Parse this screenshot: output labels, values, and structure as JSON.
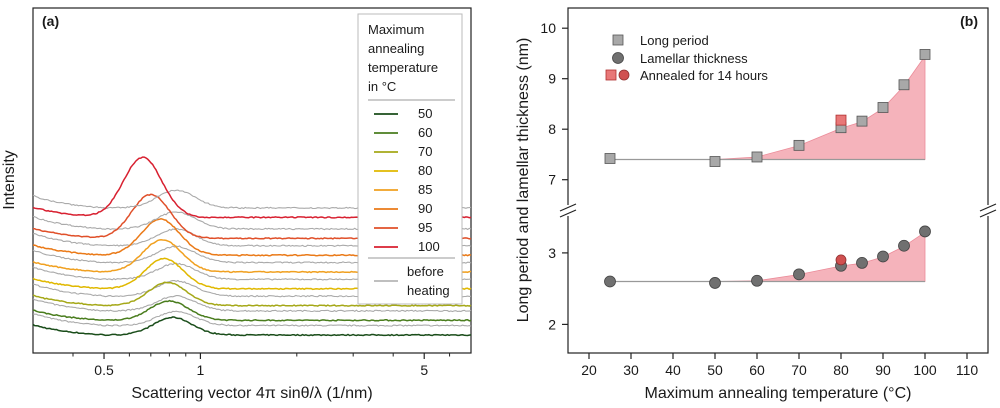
{
  "chart_data": [
    {
      "panel": "(a)",
      "type": "line",
      "xlabel": "Scattering vector 4π sinθ/λ (1/nm)",
      "ylabel": "Intensity",
      "x_scale": "log",
      "x_ticks": [
        {
          "value": 0.5,
          "label": "0.5"
        },
        {
          "value": 1,
          "label": "1"
        },
        {
          "value": 5,
          "label": "5"
        }
      ],
      "xlim": [
        0.3,
        7
      ],
      "y_ticks": "none",
      "legend": {
        "title": "Maximum annealing temperature in °C",
        "title_lines": [
          "Maximum",
          "annealing",
          "temperature",
          "in °C"
        ],
        "entries": [
          "50",
          "60",
          "70",
          "80",
          "85",
          "90",
          "95",
          "100"
        ],
        "reference_lines": [
          "before",
          "heating"
        ],
        "placement": "top-right"
      },
      "series": [
        {
          "name": "50",
          "color": "#1a4d1a",
          "peak_q": 0.82,
          "offset": 0.0,
          "peak_height": 0.38,
          "ref_peak_height": 0.3
        },
        {
          "name": "60",
          "color": "#4a7d1e",
          "peak_q": 0.8,
          "offset": 0.07,
          "peak_height": 0.42,
          "ref_peak_height": 0.32
        },
        {
          "name": "70",
          "color": "#a5a818",
          "peak_q": 0.79,
          "offset": 0.14,
          "peak_height": 0.5,
          "ref_peak_height": 0.33
        },
        {
          "name": "80",
          "color": "#e0b800",
          "peak_q": 0.77,
          "offset": 0.22,
          "peak_height": 0.65,
          "ref_peak_height": 0.34
        },
        {
          "name": "85",
          "color": "#f0a020",
          "peak_q": 0.76,
          "offset": 0.3,
          "peak_height": 0.7,
          "ref_peak_height": 0.35
        },
        {
          "name": "90",
          "color": "#ea7a18",
          "peak_q": 0.75,
          "offset": 0.38,
          "peak_height": 0.78,
          "ref_peak_height": 0.36
        },
        {
          "name": "95",
          "color": "#e0502a",
          "peak_q": 0.7,
          "offset": 0.46,
          "peak_height": 0.95,
          "ref_peak_height": 0.37
        },
        {
          "name": "100",
          "color": "#d82030",
          "peak_q": 0.66,
          "offset": 0.56,
          "peak_height": 1.3,
          "ref_peak_height": 0.38
        }
      ],
      "reference_color": "#aaaaaa"
    },
    {
      "panel": "(b)",
      "type": "scatter",
      "xlabel": "Maximum annealing temperature (°C)",
      "ylabel": "Long period and lamellar thickness (nm)",
      "xlim": [
        15,
        115
      ],
      "x_ticks": [
        20,
        30,
        40,
        50,
        60,
        70,
        80,
        90,
        100,
        110
      ],
      "y_axis_break": true,
      "ylim_upper": [
        6.4,
        10.4
      ],
      "ylim_lower": [
        1.6,
        3.6
      ],
      "y_ticks_upper": [
        7,
        8,
        9,
        10
      ],
      "y_ticks_lower": [
        2,
        3
      ],
      "legend": {
        "entries": [
          "Long period",
          "Lamellar thickness",
          "Annealed for 14 hours"
        ],
        "placement": "top-left"
      },
      "series": [
        {
          "name": "Long period",
          "marker": "square",
          "color": "#a8a8a8",
          "x": [
            25,
            50,
            60,
            70,
            80,
            85,
            90,
            95,
            100
          ],
          "y": [
            7.42,
            7.36,
            7.45,
            7.68,
            8.03,
            8.16,
            8.43,
            8.88,
            9.48
          ]
        },
        {
          "name": "Lamellar thickness",
          "marker": "circle",
          "color": "#707070",
          "x": [
            25,
            50,
            60,
            70,
            80,
            85,
            90,
            95,
            100
          ],
          "y": [
            2.6,
            2.58,
            2.61,
            2.7,
            2.82,
            2.86,
            2.95,
            3.1,
            3.3
          ]
        },
        {
          "name": "Annealed for 14 hours",
          "marker": "square+circle",
          "color": "#e87878",
          "x": [
            80,
            80
          ],
          "y_long_period": 8.18,
          "y_lamellar": 2.86
        }
      ],
      "baseline_long_period": 7.4,
      "baseline_lamellar": 2.6,
      "shade_color": "#f4a6b0"
    }
  ]
}
